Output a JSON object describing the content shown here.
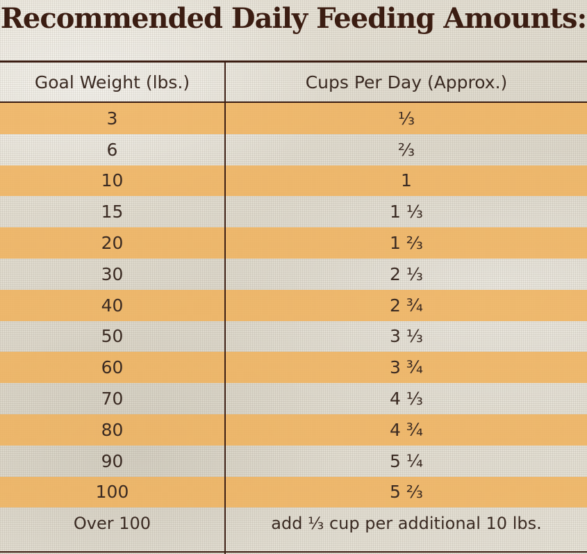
{
  "title": "Recommended Daily Feeding Amounts:",
  "table": {
    "headers": {
      "goal_weight": "Goal Weight (lbs.)",
      "cups_per_day": "Cups Per Day (Approx.)"
    },
    "rows": [
      {
        "weight": "3",
        "cups": "⅓"
      },
      {
        "weight": "6",
        "cups": "⅔"
      },
      {
        "weight": "10",
        "cups": "1"
      },
      {
        "weight": "15",
        "cups": "1 ⅓"
      },
      {
        "weight": "20",
        "cups": "1 ⅔"
      },
      {
        "weight": "30",
        "cups": "2 ⅓"
      },
      {
        "weight": "40",
        "cups": "2 ¾"
      },
      {
        "weight": "50",
        "cups": "3 ⅓"
      },
      {
        "weight": "60",
        "cups": "3 ¾"
      },
      {
        "weight": "70",
        "cups": "4 ⅓"
      },
      {
        "weight": "80",
        "cups": "4 ¾"
      },
      {
        "weight": "90",
        "cups": "5 ¼"
      },
      {
        "weight": "100",
        "cups": "5 ⅔"
      },
      {
        "weight": "Over 100",
        "cups": "add ⅓ cup per additional 10 lbs."
      }
    ]
  },
  "colors": {
    "stripe": "#f0b25c",
    "rule": "#3b1d12",
    "title": "#3b1d12",
    "text": "#3a2a22"
  }
}
